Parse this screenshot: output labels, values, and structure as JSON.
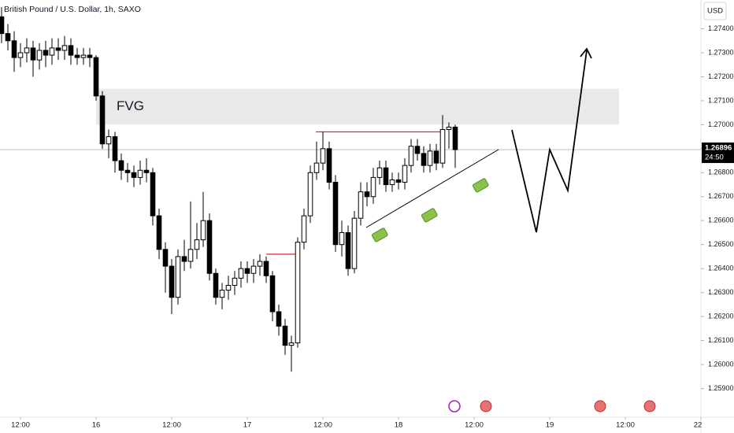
{
  "chart_data": {
    "type": "candlestick",
    "title": "British Pound / U.S. Dollar, 1h, SAXO",
    "currency": "USD",
    "open": [
      1.2745,
      1.2738,
      1.2735,
      1.2728,
      1.273,
      1.2732,
      1.2727,
      1.2731,
      1.2729,
      1.2732,
      1.2731,
      1.2733,
      1.2729,
      1.2728,
      1.2729,
      1.2728,
      1.2712,
      1.2692,
      1.2695,
      1.2685,
      1.2681,
      1.268,
      1.2678,
      1.2681,
      1.268,
      1.2662,
      1.2648,
      1.2641,
      1.2628,
      1.2645,
      1.2643,
      1.2648,
      1.2652,
      1.266,
      1.2638,
      1.2628,
      1.2631,
      1.2633,
      1.2636,
      1.264,
      1.2638,
      1.2641,
      1.2643,
      1.2637,
      1.2622,
      1.2616,
      1.2608,
      1.2609,
      1.2651,
      1.2662,
      1.268,
      1.2684,
      1.269,
      1.2676,
      1.265,
      1.2655,
      1.264,
      1.2661,
      1.2672,
      1.267,
      1.2678,
      1.2682,
      1.2675,
      1.2677,
      1.2676,
      1.2683,
      1.2691,
      1.2688,
      1.2683,
      1.2689,
      1.2684,
      1.2698,
      1.2699
    ],
    "high": [
      1.2749,
      1.2742,
      1.2739,
      1.2734,
      1.2736,
      1.2735,
      1.2734,
      1.2735,
      1.2736,
      1.2736,
      1.2737,
      1.2736,
      1.2732,
      1.2732,
      1.2732,
      1.2729,
      1.2714,
      1.2698,
      1.2697,
      1.2688,
      1.2684,
      1.2683,
      1.2685,
      1.2686,
      1.2682,
      1.2665,
      1.2651,
      1.2644,
      1.2648,
      1.2652,
      1.2668,
      1.2659,
      1.2672,
      1.2663,
      1.264,
      1.2634,
      1.2637,
      1.2639,
      1.2643,
      1.2643,
      1.2644,
      1.2646,
      1.2645,
      1.2639,
      1.2625,
      1.2619,
      1.2612,
      1.2653,
      1.2665,
      1.2683,
      1.2693,
      1.2697,
      1.2693,
      1.2679,
      1.266,
      1.2658,
      1.2664,
      1.2676,
      1.2676,
      1.2682,
      1.2685,
      1.2685,
      1.268,
      1.268,
      1.2686,
      1.2694,
      1.2694,
      1.2691,
      1.2692,
      1.2692,
      1.2704,
      1.2701,
      1.27
    ],
    "low": [
      1.2734,
      1.2731,
      1.2722,
      1.2724,
      1.2726,
      1.272,
      1.2723,
      1.2724,
      1.2725,
      1.2727,
      1.2727,
      1.2725,
      1.2725,
      1.2725,
      1.2724,
      1.271,
      1.269,
      1.2686,
      1.268,
      1.2677,
      1.2676,
      1.2674,
      1.2675,
      1.2676,
      1.2658,
      1.2644,
      1.263,
      1.2621,
      1.2625,
      1.2639,
      1.264,
      1.2644,
      1.2649,
      1.2635,
      1.2625,
      1.2623,
      1.2627,
      1.2629,
      1.2632,
      1.2634,
      1.2634,
      1.2637,
      1.2634,
      1.2618,
      1.2612,
      1.2604,
      1.2597,
      1.2607,
      1.2648,
      1.2659,
      1.2677,
      1.2681,
      1.2673,
      1.2647,
      1.2645,
      1.2637,
      1.2638,
      1.2658,
      1.2666,
      1.2667,
      1.2675,
      1.2672,
      1.2672,
      1.2673,
      1.2673,
      1.268,
      1.2685,
      1.268,
      1.268,
      1.2681,
      1.2682,
      1.269,
      1.2682
    ],
    "close": [
      1.2738,
      1.2735,
      1.2728,
      1.273,
      1.2732,
      1.2727,
      1.2731,
      1.2729,
      1.2732,
      1.2731,
      1.2733,
      1.2729,
      1.2728,
      1.2729,
      1.2728,
      1.2712,
      1.2692,
      1.2695,
      1.2685,
      1.2681,
      1.268,
      1.2678,
      1.2681,
      1.268,
      1.2662,
      1.2648,
      1.2641,
      1.2628,
      1.2645,
      1.2643,
      1.2648,
      1.2652,
      1.266,
      1.2638,
      1.2628,
      1.2631,
      1.2633,
      1.2636,
      1.264,
      1.2638,
      1.2641,
      1.2643,
      1.2637,
      1.2622,
      1.2616,
      1.2608,
      1.2609,
      1.2651,
      1.2662,
      1.268,
      1.2684,
      1.269,
      1.2676,
      1.265,
      1.2655,
      1.264,
      1.2661,
      1.2672,
      1.267,
      1.2678,
      1.2682,
      1.2675,
      1.2677,
      1.2676,
      1.2683,
      1.2691,
      1.2688,
      1.2683,
      1.2689,
      1.2684,
      1.2698,
      1.2699,
      1.26896
    ],
    "up_color": "#ffffff",
    "down_color": "#000000",
    "ylim": [
      1.2578,
      1.2752
    ],
    "yticks": [
      {
        "value": 1.274,
        "label": "1.27400"
      },
      {
        "value": 1.273,
        "label": "1.27300"
      },
      {
        "value": 1.272,
        "label": "1.27200"
      },
      {
        "value": 1.271,
        "label": "1.27100"
      },
      {
        "value": 1.27,
        "label": "1.27000"
      },
      {
        "value": 1.269,
        "label": "1.26900"
      },
      {
        "value": 1.268,
        "label": "1.26800"
      },
      {
        "value": 1.267,
        "label": "1.26700"
      },
      {
        "value": 1.266,
        "label": "1.26600"
      },
      {
        "value": 1.265,
        "label": "1.26500"
      },
      {
        "value": 1.264,
        "label": "1.26400"
      },
      {
        "value": 1.263,
        "label": "1.26300"
      },
      {
        "value": 1.262,
        "label": "1.26200"
      },
      {
        "value": 1.261,
        "label": "1.26100"
      },
      {
        "value": 1.26,
        "label": "1.26000"
      },
      {
        "value": 1.259,
        "label": "1.25900"
      }
    ],
    "xlim": [
      -0.25,
      111
    ],
    "xticks": [
      {
        "value": 3,
        "label": "12:00"
      },
      {
        "value": 15,
        "label": "16"
      },
      {
        "value": 27,
        "label": "12:00"
      },
      {
        "value": 39,
        "label": "17"
      },
      {
        "value": 51,
        "label": "12:00"
      },
      {
        "value": 63,
        "label": "18"
      },
      {
        "value": 75,
        "label": "12:00"
      },
      {
        "value": 87,
        "label": "19"
      },
      {
        "value": 99,
        "label": "12:00"
      },
      {
        "value": 111,
        "label": "22"
      }
    ],
    "grid": false,
    "last_price": {
      "value": 1.26896,
      "label": "1.26896",
      "countdown": "24:50"
    },
    "fvg": {
      "label": "FVG",
      "range": [
        1.27,
        1.2715
      ],
      "color": "#e9e9ea"
    },
    "levels": [
      {
        "value": 1.2697,
        "color": "#d32f2f"
      },
      {
        "value": 1.2646,
        "color": "#d32f2f"
      }
    ]
  }
}
